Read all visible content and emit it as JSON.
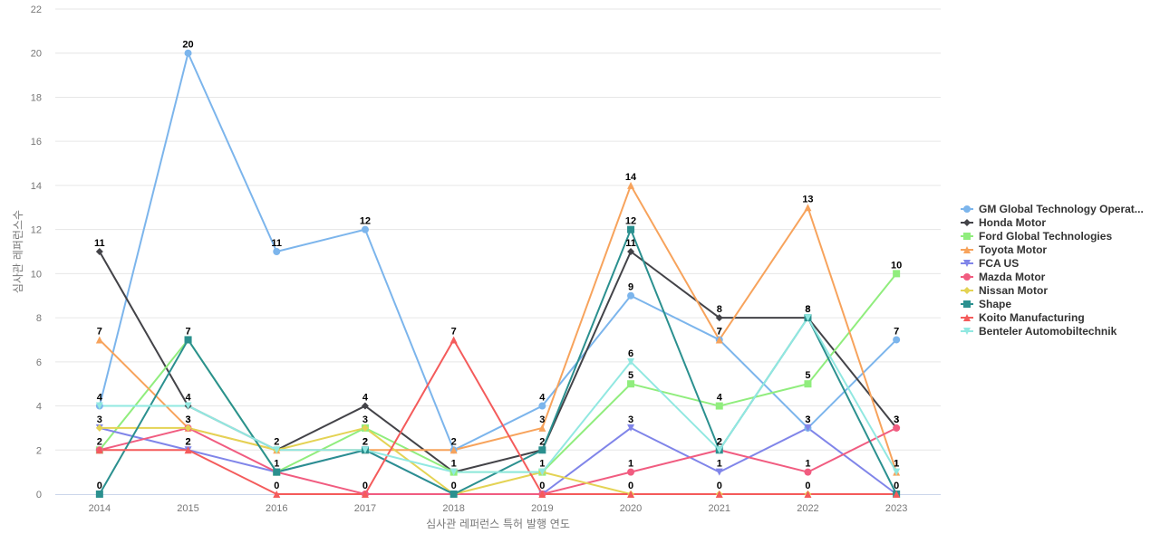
{
  "chart_data": {
    "type": "line",
    "xlabel": "심사관 레퍼런스 특허 발행 연도",
    "ylabel": "심사관 레퍼런스수",
    "ylim": [
      0,
      22
    ],
    "yticks": [
      0,
      2,
      4,
      6,
      8,
      10,
      12,
      14,
      16,
      18,
      20,
      22
    ],
    "grid": true,
    "legend_position": "right",
    "x": [
      "2014",
      "2015",
      "2016",
      "2017",
      "2018",
      "2019",
      "2020",
      "2021",
      "2022",
      "2023"
    ],
    "series": [
      {
        "name": "GM Global Technology Operat...",
        "color": "#7cb5ec",
        "marker": "circle",
        "values": [
          4,
          20,
          11,
          12,
          2,
          4,
          9,
          7,
          3,
          7
        ]
      },
      {
        "name": "Honda Motor",
        "color": "#434348",
        "marker": "diamond",
        "values": [
          11,
          4,
          2,
          4,
          1,
          2,
          11,
          8,
          8,
          3
        ]
      },
      {
        "name": "Ford Global Technologies",
        "color": "#90ed7d",
        "marker": "square",
        "values": [
          2,
          7,
          1,
          3,
          1,
          1,
          5,
          4,
          5,
          10
        ]
      },
      {
        "name": "Toyota Motor",
        "color": "#f7a35c",
        "marker": "triangle",
        "values": [
          7,
          3,
          2,
          2,
          2,
          3,
          14,
          7,
          13,
          1
        ]
      },
      {
        "name": "FCA US",
        "color": "#8085e9",
        "marker": "triangle-down",
        "values": [
          3,
          2,
          1,
          2,
          0,
          0,
          3,
          1,
          3,
          0
        ]
      },
      {
        "name": "Mazda Motor",
        "color": "#f15c80",
        "marker": "circle",
        "values": [
          2,
          3,
          1,
          0,
          0,
          0,
          1,
          2,
          1,
          3
        ]
      },
      {
        "name": "Nissan Motor",
        "color": "#e4d354",
        "marker": "diamond",
        "values": [
          3,
          3,
          2,
          3,
          0,
          1,
          0,
          0,
          0,
          0
        ]
      },
      {
        "name": "Shape",
        "color": "#2b908f",
        "marker": "square",
        "values": [
          0,
          7,
          1,
          2,
          0,
          2,
          12,
          2,
          8,
          0
        ]
      },
      {
        "name": "Koito Manufacturing",
        "color": "#f45b5b",
        "marker": "triangle",
        "values": [
          2,
          2,
          0,
          0,
          7,
          0,
          0,
          0,
          0,
          0
        ]
      },
      {
        "name": "Benteler Automobiltechnik",
        "color": "#91e8e1",
        "marker": "triangle-down",
        "values": [
          4,
          4,
          2,
          2,
          1,
          1,
          6,
          2,
          8,
          1
        ]
      }
    ],
    "data_labels": [
      {
        "series": 0,
        "index": 0,
        "text": "4"
      },
      {
        "series": 0,
        "index": 1,
        "text": "20"
      },
      {
        "series": 0,
        "index": 2,
        "text": "11"
      },
      {
        "series": 0,
        "index": 3,
        "text": "12"
      },
      {
        "series": 0,
        "index": 4,
        "text": "2"
      },
      {
        "series": 0,
        "index": 5,
        "text": "4"
      },
      {
        "series": 0,
        "index": 6,
        "text": "9"
      },
      {
        "series": 0,
        "index": 7,
        "text": "7"
      },
      {
        "series": 0,
        "index": 8,
        "text": "3"
      },
      {
        "series": 0,
        "index": 9,
        "text": "7"
      },
      {
        "series": 1,
        "index": 0,
        "text": "11"
      },
      {
        "series": 1,
        "index": 3,
        "text": "4"
      },
      {
        "series": 1,
        "index": 4,
        "text": "1"
      },
      {
        "series": 1,
        "index": 6,
        "text": "11"
      },
      {
        "series": 1,
        "index": 7,
        "text": "8"
      },
      {
        "series": 1,
        "index": 8,
        "text": "8"
      },
      {
        "series": 1,
        "index": 9,
        "text": "3"
      },
      {
        "series": 2,
        "index": 0,
        "text": "2"
      },
      {
        "series": 2,
        "index": 2,
        "text": "1"
      },
      {
        "series": 2,
        "index": 3,
        "text": "3"
      },
      {
        "series": 2,
        "index": 5,
        "text": "1"
      },
      {
        "series": 2,
        "index": 6,
        "text": "5"
      },
      {
        "series": 2,
        "index": 7,
        "text": "4"
      },
      {
        "series": 2,
        "index": 8,
        "text": "5"
      },
      {
        "series": 2,
        "index": 9,
        "text": "10"
      },
      {
        "series": 3,
        "index": 0,
        "text": "7"
      },
      {
        "series": 3,
        "index": 1,
        "text": "3"
      },
      {
        "series": 3,
        "index": 2,
        "text": "2"
      },
      {
        "series": 3,
        "index": 5,
        "text": "3"
      },
      {
        "series": 3,
        "index": 6,
        "text": "14"
      },
      {
        "series": 3,
        "index": 7,
        "text": "7"
      },
      {
        "series": 3,
        "index": 8,
        "text": "13"
      },
      {
        "series": 3,
        "index": 9,
        "text": "1"
      },
      {
        "series": 4,
        "index": 0,
        "text": "3"
      },
      {
        "series": 4,
        "index": 1,
        "text": "2"
      },
      {
        "series": 4,
        "index": 3,
        "text": "2"
      },
      {
        "series": 4,
        "index": 6,
        "text": "3"
      },
      {
        "series": 4,
        "index": 7,
        "text": "1"
      },
      {
        "series": 4,
        "index": 8,
        "text": "3"
      },
      {
        "series": 5,
        "index": 1,
        "text": "3"
      },
      {
        "series": 5,
        "index": 3,
        "text": "0"
      },
      {
        "series": 5,
        "index": 6,
        "text": "1"
      },
      {
        "series": 5,
        "index": 7,
        "text": "2"
      },
      {
        "series": 5,
        "index": 8,
        "text": "1"
      },
      {
        "series": 5,
        "index": 9,
        "text": "3"
      },
      {
        "series": 6,
        "index": 6,
        "text": "0"
      },
      {
        "series": 7,
        "index": 0,
        "text": "0"
      },
      {
        "series": 7,
        "index": 1,
        "text": "7"
      },
      {
        "series": 7,
        "index": 4,
        "text": "0"
      },
      {
        "series": 7,
        "index": 5,
        "text": "2"
      },
      {
        "series": 7,
        "index": 6,
        "text": "12"
      },
      {
        "series": 7,
        "index": 7,
        "text": "2"
      },
      {
        "series": 7,
        "index": 9,
        "text": "0"
      },
      {
        "series": 8,
        "index": 1,
        "text": "2"
      },
      {
        "series": 8,
        "index": 2,
        "text": "0"
      },
      {
        "series": 8,
        "index": 4,
        "text": "7"
      },
      {
        "series": 8,
        "index": 5,
        "text": "0"
      },
      {
        "series": 8,
        "index": 7,
        "text": "0"
      },
      {
        "series": 8,
        "index": 8,
        "text": "0"
      },
      {
        "series": 9,
        "index": 1,
        "text": "4"
      },
      {
        "series": 9,
        "index": 3,
        "text": "2"
      },
      {
        "series": 9,
        "index": 6,
        "text": "6"
      },
      {
        "series": 9,
        "index": 8,
        "text": "8"
      },
      {
        "series": 9,
        "index": 9,
        "text": "1"
      }
    ]
  }
}
